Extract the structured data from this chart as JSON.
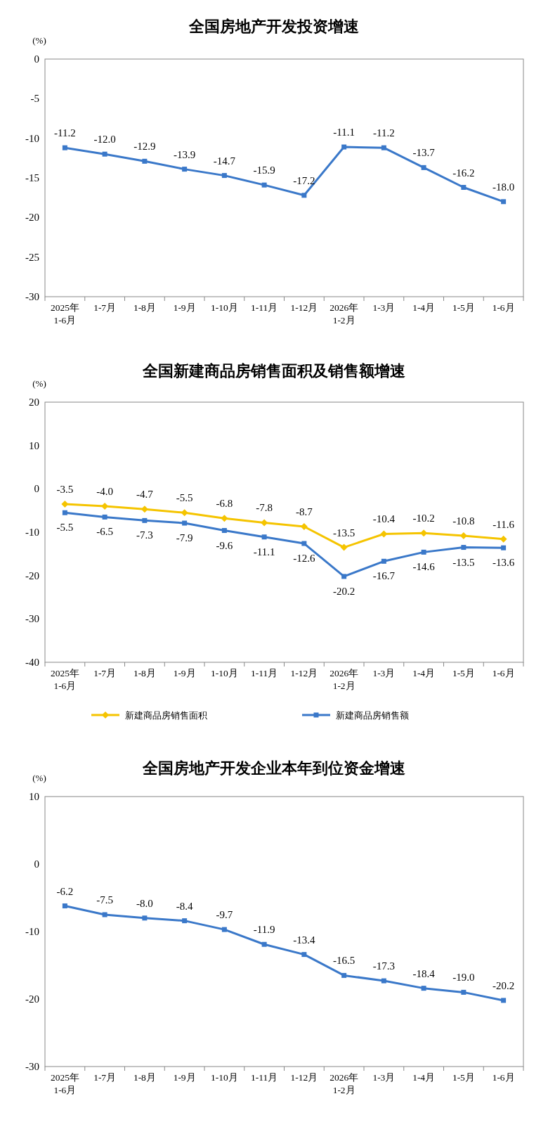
{
  "chart_data": [
    {
      "type": "line",
      "title": "全国房地产开发投资增速",
      "ylabel": "(%)",
      "categories": [
        "2025年\n1-6月",
        "1-7月",
        "1-8月",
        "1-9月",
        "1-10月",
        "1-11月",
        "1-12月",
        "2026年\n1-2月",
        "1-3月",
        "1-4月",
        "1-5月",
        "1-6月"
      ],
      "ylim": [
        -30,
        0
      ],
      "yticks": [
        0,
        -5,
        -10,
        -15,
        -20,
        -25,
        -30
      ],
      "marker": "square",
      "grid": false,
      "legend": false,
      "series": [
        {
          "color": "#3a78c9",
          "values": [
            -11.2,
            -12.0,
            -12.9,
            -13.9,
            -14.7,
            -15.9,
            -17.2,
            -11.1,
            -11.2,
            -13.7,
            -16.2,
            -18.0
          ],
          "value_labels": [
            "-11.2",
            "-12.0",
            "-12.9",
            "-13.9",
            "-14.7",
            "-15.9",
            "-17.2",
            "-11.1",
            "-11.2",
            "-13.7",
            "-16.2",
            "-18.0"
          ]
        }
      ]
    },
    {
      "type": "line",
      "title": "全国新建商品房销售面积及销售额增速",
      "ylabel": "(%)",
      "categories": [
        "2025年\n1-6月",
        "1-7月",
        "1-8月",
        "1-9月",
        "1-10月",
        "1-11月",
        "1-12月",
        "2026年\n1-2月",
        "1-3月",
        "1-4月",
        "1-5月",
        "1-6月"
      ],
      "ylim": [
        -40,
        20
      ],
      "yticks": [
        20,
        10,
        0,
        -10,
        -20,
        -30,
        -40
      ],
      "grid": false,
      "legend": "bottom",
      "series": [
        {
          "name": "新建商品房销售面积",
          "color": "#f5c400",
          "marker": "diamond",
          "values": [
            -3.5,
            -4.0,
            -4.7,
            -5.5,
            -6.8,
            -7.8,
            -8.7,
            -13.5,
            -10.4,
            -10.2,
            -10.8,
            -11.6
          ],
          "value_labels": [
            "-3.5",
            "-4.0",
            "-4.7",
            "-5.5",
            "-6.8",
            "-7.8",
            "-8.7",
            "-13.5",
            "-10.4",
            "-10.2",
            "-10.8",
            "-11.6"
          ]
        },
        {
          "name": "新建商品房销售额",
          "color": "#3a78c9",
          "marker": "square",
          "values": [
            -5.5,
            -6.5,
            -7.3,
            -7.9,
            -9.6,
            -11.1,
            -12.6,
            -20.2,
            -16.7,
            -14.6,
            -13.5,
            -13.6
          ],
          "value_labels": [
            "-5.5",
            "-6.5",
            "-7.3",
            "-7.9",
            "-9.6",
            "-11.1",
            "-12.6",
            "-20.2",
            "-16.7",
            "-14.6",
            "-13.5",
            "-13.6"
          ]
        }
      ]
    },
    {
      "type": "line",
      "title": "全国房地产开发企业本年到位资金增速",
      "ylabel": "(%)",
      "categories": [
        "2025年\n1-6月",
        "1-7月",
        "1-8月",
        "1-9月",
        "1-10月",
        "1-11月",
        "1-12月",
        "2026年\n1-2月",
        "1-3月",
        "1-4月",
        "1-5月",
        "1-6月"
      ],
      "ylim": [
        -30,
        10
      ],
      "yticks": [
        10,
        0,
        -10,
        -20,
        -30
      ],
      "marker": "square",
      "grid": false,
      "legend": false,
      "series": [
        {
          "color": "#3a78c9",
          "values": [
            -6.2,
            -7.5,
            -8.0,
            -8.4,
            -9.7,
            -11.9,
            -13.4,
            -16.5,
            -17.3,
            -18.4,
            -19.0,
            -20.2
          ],
          "value_labels": [
            "-6.2",
            "-7.5",
            "-8.0",
            "-8.4",
            "-9.7",
            "-11.9",
            "-13.4",
            "-16.5",
            "-17.3",
            "-18.4",
            "-19.0",
            "-20.2"
          ]
        }
      ]
    }
  ]
}
